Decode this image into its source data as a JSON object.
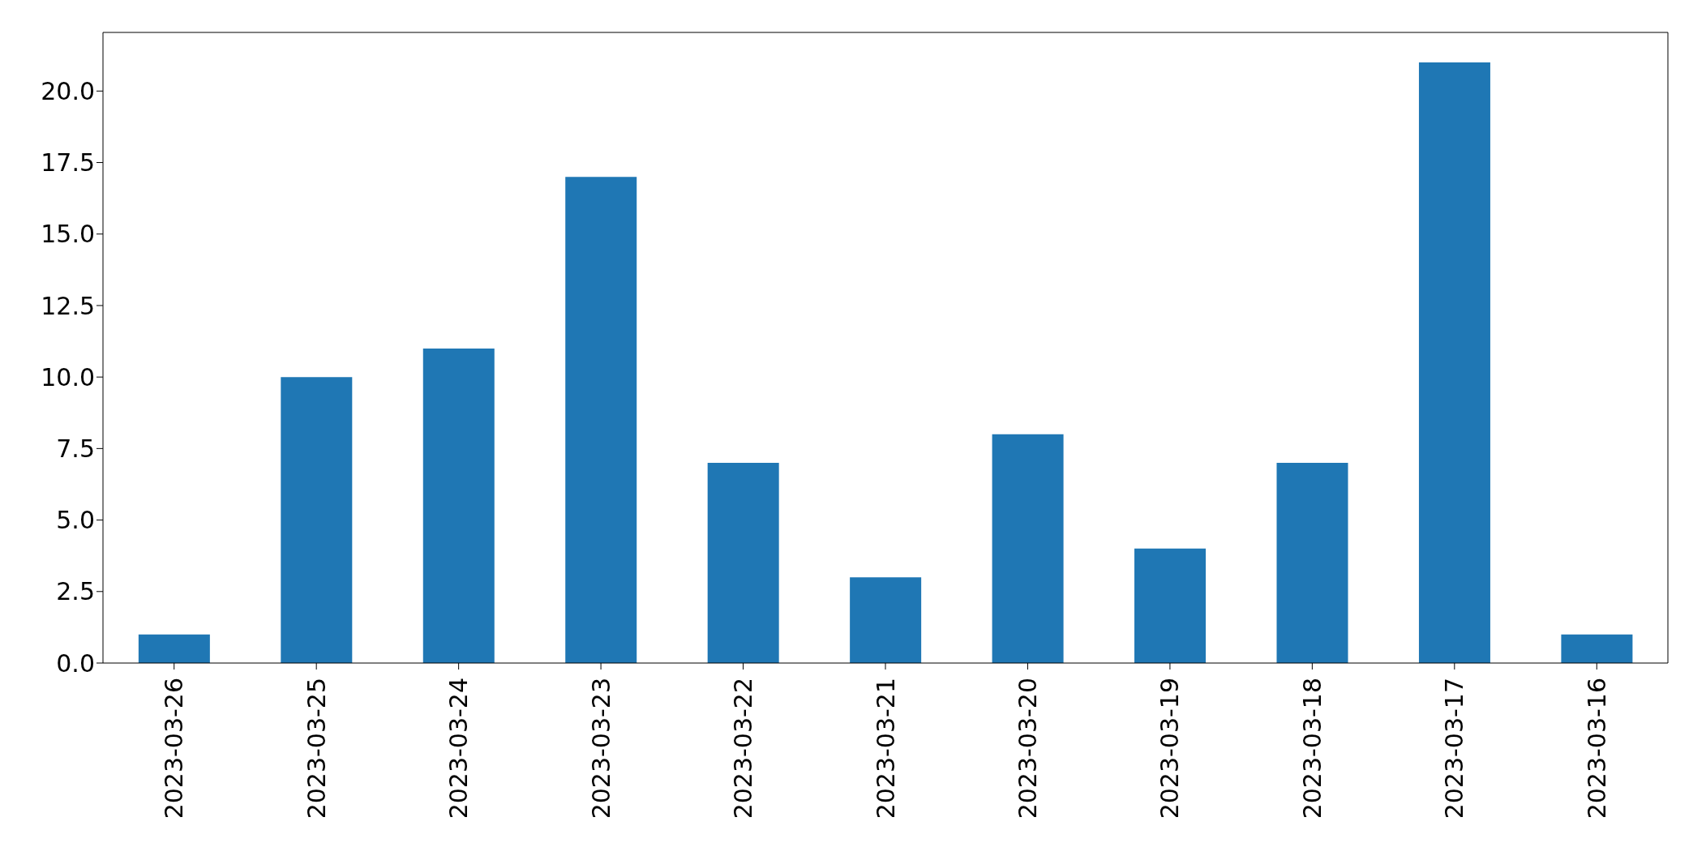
{
  "chart_data": {
    "type": "bar",
    "categories": [
      "2023-03-26",
      "2023-03-25",
      "2023-03-24",
      "2023-03-23",
      "2023-03-22",
      "2023-03-21",
      "2023-03-20",
      "2023-03-19",
      "2023-03-18",
      "2023-03-17",
      "2023-03-16"
    ],
    "values": [
      1,
      10,
      11,
      17,
      7,
      3,
      8,
      4,
      7,
      21,
      1
    ],
    "color": "#1f77b4",
    "ylim": [
      0,
      22.05
    ],
    "yticks": [
      {
        "value": 0,
        "label": "0.0"
      },
      {
        "value": 2.5,
        "label": "2.5"
      },
      {
        "value": 5,
        "label": "5.0"
      },
      {
        "value": 7.5,
        "label": "7.5"
      },
      {
        "value": 10,
        "label": "10.0"
      },
      {
        "value": 12.5,
        "label": "12.5"
      },
      {
        "value": 15,
        "label": "15.0"
      },
      {
        "value": 17.5,
        "label": "17.5"
      },
      {
        "value": 20,
        "label": "20.0"
      }
    ]
  }
}
